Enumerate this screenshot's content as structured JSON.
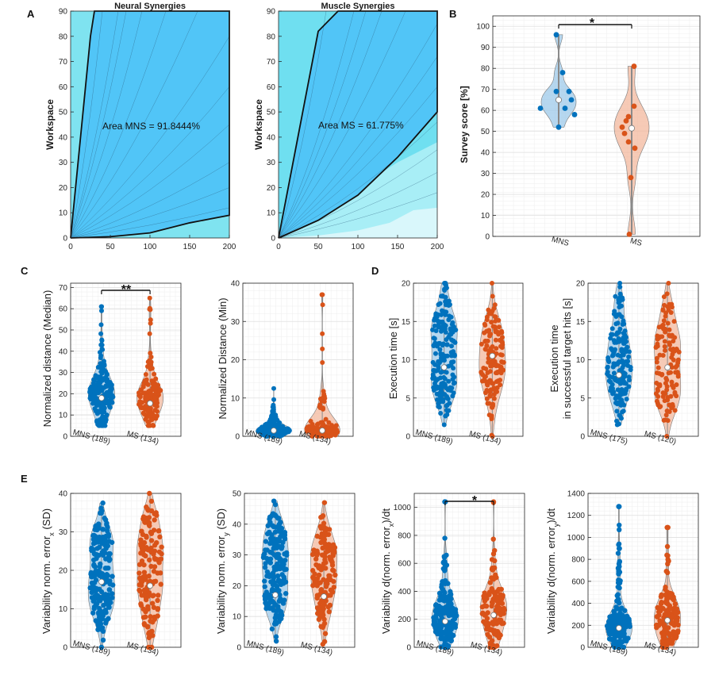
{
  "colors": {
    "mns": "#0072BD",
    "ms": "#D95319",
    "mns_fill": "#9ecae9",
    "ms_fill": "#f3b89d",
    "area_fill": "#4fc3f7",
    "area_light": "#b2ebf2"
  },
  "panels": {
    "A": {
      "label": "A",
      "left_title": "Neural Synergies",
      "right_title": "Muscle Synergies",
      "ylabel": "Workspace",
      "left_annotation": "Area MNS = 91.8444%",
      "right_annotation": "Area MS = 61.775%",
      "xticks": [
        "0",
        "50",
        "100",
        "150",
        "200"
      ],
      "yticks": [
        "0",
        "10",
        "20",
        "30",
        "40",
        "50",
        "60",
        "70",
        "80",
        "90"
      ]
    },
    "B": {
      "label": "B",
      "ylabel": "Survey score [%]",
      "sig": "*",
      "yticks": [
        "0",
        "10",
        "20",
        "30",
        "40",
        "50",
        "60",
        "70",
        "80",
        "90",
        "100"
      ],
      "xticks": [
        "MNS",
        "MS"
      ]
    },
    "C": {
      "label": "C",
      "sig": "**",
      "left_ylabel": "Normalized distance (Median)",
      "right_ylabel": "Normalized Distance (Min)",
      "left_yticks": [
        "0",
        "10",
        "20",
        "30",
        "40",
        "50",
        "60",
        "70"
      ],
      "right_yticks": [
        "0",
        "10",
        "20",
        "30",
        "40"
      ],
      "xticks": [
        "MNS (189)",
        "MS (134)"
      ]
    },
    "D": {
      "label": "D",
      "left_ylabel": "Execution time [s]",
      "right_ylabel_1": "Execution time",
      "right_ylabel_2": "in successful target hits [s]",
      "yticks": [
        "0",
        "5",
        "10",
        "15",
        "20"
      ],
      "left_xticks": [
        "MNS (189)",
        "MS (134)"
      ],
      "right_xticks": [
        "MNS (175)",
        "MS (120)"
      ]
    },
    "E": {
      "label": "E",
      "sig": "*",
      "ylabels": [
        "Variability norm. error",
        "Variability norm. error",
        "Variability d(norm. error",
        "Variability d(norm. error"
      ],
      "ylabel_subs": [
        "x",
        "y",
        "x",
        "y"
      ],
      "ylabel_tails": [
        " (SD)",
        " (SD)",
        ")/dt",
        ")/dt"
      ],
      "yticks_1": [
        "0",
        "10",
        "20",
        "30",
        "40"
      ],
      "yticks_2": [
        "0",
        "10",
        "20",
        "30",
        "40",
        "50"
      ],
      "yticks_3": [
        "0",
        "200",
        "400",
        "600",
        "800",
        "1000"
      ],
      "yticks_4": [
        "0",
        "200",
        "400",
        "600",
        "800",
        "1000",
        "1200",
        "1400"
      ],
      "xticks": [
        "MNS (189)",
        "MS (134)"
      ]
    }
  },
  "chart_data": [
    {
      "panel": "A-left",
      "type": "area",
      "title": "Neural Synergies",
      "xlabel": "",
      "ylabel": "Workspace",
      "xlim": [
        0,
        200
      ],
      "ylim": [
        0,
        90
      ],
      "boundary": {
        "x": [
          0,
          25,
          30,
          200,
          200,
          150,
          100,
          50,
          0
        ],
        "y": [
          0,
          80,
          90,
          90,
          9,
          6,
          2,
          0.5,
          0
        ]
      },
      "area_percent": 91.8444
    },
    {
      "panel": "A-right",
      "type": "area",
      "title": "Muscle Synergies",
      "xlabel": "",
      "ylabel": "Workspace",
      "xlim": [
        0,
        200
      ],
      "ylim": [
        0,
        90
      ],
      "boundary": {
        "x": [
          0,
          50,
          75,
          200,
          200,
          150,
          100,
          50,
          0
        ],
        "y": [
          0,
          82,
          90,
          90,
          50,
          32,
          17,
          7,
          0
        ]
      },
      "area_percent": 61.775
    },
    {
      "panel": "B",
      "type": "violin",
      "ylabel": "Survey score [%]",
      "ylim": [
        0,
        105
      ],
      "categories": [
        "MNS",
        "MS"
      ],
      "series": [
        {
          "name": "MNS",
          "values": [
            96,
            78,
            69,
            69,
            65,
            65,
            61,
            61,
            58,
            52
          ],
          "median": 65,
          "min": 52,
          "max": 96
        },
        {
          "name": "MS",
          "values": [
            81,
            62,
            57,
            55,
            52,
            49,
            45,
            42,
            28,
            1
          ],
          "median": 51.5,
          "min": 1,
          "max": 81
        }
      ]
    },
    {
      "panel": "C-left",
      "type": "violin",
      "ylabel": "Normalized distance (Median)",
      "ylim": [
        0,
        72
      ],
      "categories": [
        "MNS (189)",
        "MS (134)"
      ],
      "series": [
        {
          "name": "MNS (189)",
          "median": 18,
          "min": 5,
          "max": 61
        },
        {
          "name": "MS (134)",
          "median": 15.5,
          "min": 5,
          "max": 65
        }
      ]
    },
    {
      "panel": "C-right",
      "type": "violin",
      "ylabel": "Normalized Distance (Min)",
      "ylim": [
        0,
        40
      ],
      "categories": [
        "MNS (189)",
        "MS (134)"
      ],
      "series": [
        {
          "name": "MNS (189)",
          "median": 1.5,
          "min": 0,
          "max": 12.5
        },
        {
          "name": "MS (134)",
          "median": 1.5,
          "min": 0,
          "max": 37
        }
      ]
    },
    {
      "panel": "D-left",
      "type": "violin",
      "ylabel": "Execution time [s]",
      "ylim": [
        0,
        20
      ],
      "categories": [
        "MNS (189)",
        "MS (134)"
      ],
      "series": [
        {
          "name": "MNS (189)",
          "median": 9,
          "min": 1.5,
          "max": 20
        },
        {
          "name": "MS (134)",
          "median": 10.5,
          "min": 0,
          "max": 20
        }
      ]
    },
    {
      "panel": "D-right",
      "type": "violin",
      "ylabel": "Execution time in successful target hits [s]",
      "ylim": [
        0,
        20
      ],
      "categories": [
        "MNS (175)",
        "MS (120)"
      ],
      "series": [
        {
          "name": "MNS (175)",
          "median": 8,
          "min": 1.5,
          "max": 20
        },
        {
          "name": "MS (120)",
          "median": 9,
          "min": 0,
          "max": 20
        }
      ]
    },
    {
      "panel": "E-1",
      "type": "violin",
      "ylabel": "Variability norm. error_x (SD)",
      "ylim": [
        0,
        40
      ],
      "categories": [
        "MNS (189)",
        "MS (134)"
      ],
      "series": [
        {
          "name": "MNS (189)",
          "median": 17,
          "min": 0,
          "max": 37.5
        },
        {
          "name": "MS (134)",
          "median": 16,
          "min": 0,
          "max": 40
        }
      ]
    },
    {
      "panel": "E-2",
      "type": "violin",
      "ylabel": "Variability norm. error_y (SD)",
      "ylim": [
        0,
        50
      ],
      "categories": [
        "MNS (189)",
        "MS (134)"
      ],
      "series": [
        {
          "name": "MNS (189)",
          "median": 17,
          "min": 2,
          "max": 47.5
        },
        {
          "name": "MS (134)",
          "median": 16.5,
          "min": 1,
          "max": 47
        }
      ]
    },
    {
      "panel": "E-3",
      "type": "violin",
      "ylabel": "Variability d(norm. error_x)/dt",
      "ylim": [
        0,
        1100
      ],
      "categories": [
        "MNS (189)",
        "MS (134)"
      ],
      "series": [
        {
          "name": "MNS (189)",
          "median": 185,
          "min": 0,
          "max": 1040
        },
        {
          "name": "MS (134)",
          "median": 230,
          "min": 0,
          "max": 1040
        }
      ]
    },
    {
      "panel": "E-4",
      "type": "violin",
      "ylabel": "Variability d(norm. error_y)/dt",
      "ylim": [
        0,
        1400
      ],
      "categories": [
        "MNS (189)",
        "MS (134)"
      ],
      "series": [
        {
          "name": "MNS (189)",
          "median": 175,
          "min": 0,
          "max": 1280
        },
        {
          "name": "MS (134)",
          "median": 245,
          "min": 0,
          "max": 1090
        }
      ]
    }
  ]
}
